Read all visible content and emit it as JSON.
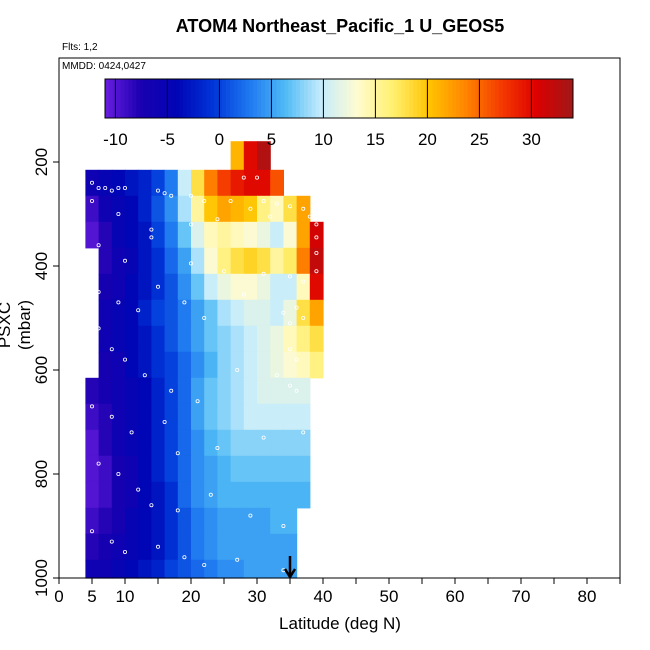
{
  "title": "ATOM4 Northeast_Pacific_1 U_GEOS5",
  "flights_label": "Flts: 1,2",
  "mmdd_label": "MMDD: 0424,0427",
  "chart_data": {
    "type": "heatmap",
    "xlabel": "Latitude (deg N)",
    "ylabel": "PSXC (mbar)",
    "xlim": [
      0,
      85
    ],
    "ylim": [
      1000,
      0
    ],
    "x_ticks": [
      0,
      5,
      10,
      20,
      30,
      40,
      50,
      60,
      70,
      80
    ],
    "y_ticks": [
      200,
      400,
      600,
      800,
      1000
    ],
    "colorbar": {
      "range": [
        -11,
        34
      ],
      "ticks": [
        -10,
        -5,
        0,
        5,
        10,
        15,
        20,
        25,
        30
      ],
      "colors": [
        "#6a1ee0",
        "#1a00b0",
        "#0005b5",
        "#0035d8",
        "#1e78f0",
        "#4fbaf5",
        "#c5ecfc",
        "#fffbd0",
        "#fff070",
        "#ffc400",
        "#ff8600",
        "#f53b00",
        "#dc0000",
        "#a01818"
      ]
    },
    "bins": {
      "lat_edges": [
        4,
        6,
        8,
        10,
        12,
        14,
        16,
        18,
        20,
        22,
        24,
        26,
        28,
        30,
        32,
        34,
        36,
        38,
        40
      ],
      "pressure_edges": [
        160,
        215,
        265,
        315,
        365,
        415,
        465,
        515,
        565,
        615,
        665,
        715,
        765,
        815,
        865,
        915,
        965,
        1000
      ],
      "u_wind": [
        [
          null,
          null,
          null,
          null,
          null,
          null,
          null,
          null,
          null,
          null,
          null,
          21,
          30,
          33,
          null,
          null,
          null,
          null
        ],
        [
          -6,
          -5,
          -4,
          -3,
          -2,
          0,
          3,
          10,
          18,
          24,
          27,
          29,
          30,
          30,
          26,
          null,
          null,
          null
        ],
        [
          -9,
          -6,
          -5,
          -4,
          -2,
          1,
          4,
          9,
          15,
          20,
          22,
          21,
          20,
          16,
          14,
          18,
          22,
          null
        ],
        [
          -10,
          -8,
          -5,
          -4,
          -3,
          0,
          3,
          7,
          11,
          14,
          15,
          14,
          13,
          12,
          10,
          13,
          22,
          31
        ],
        [
          null,
          -8,
          -6,
          -5,
          -3,
          -1,
          2,
          5,
          9,
          13,
          16,
          18,
          19,
          18,
          15,
          17,
          24,
          32
        ],
        [
          null,
          -7,
          -6,
          -4,
          -3,
          -1,
          1,
          4,
          7,
          10,
          12,
          13,
          13,
          12,
          10,
          10,
          14,
          30
        ],
        [
          null,
          -6,
          -5,
          -4,
          -2,
          0,
          1,
          3,
          5,
          7,
          9,
          10,
          11,
          11,
          10,
          12,
          18,
          22
        ],
        [
          null,
          -6,
          -5,
          -4,
          -3,
          -1,
          1,
          3,
          5,
          7,
          8,
          9,
          10,
          11,
          12,
          14,
          16,
          18
        ],
        [
          null,
          -7,
          -6,
          -4,
          -3,
          -1,
          0,
          2,
          4,
          6,
          8,
          9,
          10,
          11,
          12,
          13,
          14,
          16
        ],
        [
          -8,
          -7,
          -6,
          -5,
          -4,
          -2,
          0,
          2,
          5,
          7,
          8,
          9,
          10,
          11,
          11,
          11,
          11,
          null
        ],
        [
          -9,
          -8,
          -6,
          -5,
          -4,
          -2,
          0,
          2,
          5,
          7,
          8,
          9,
          10,
          10,
          10,
          10,
          10,
          null
        ],
        [
          -10,
          -8,
          -6,
          -5,
          -4,
          -2,
          0,
          2,
          4,
          6,
          7,
          8,
          8,
          8,
          8,
          8,
          8,
          null
        ],
        [
          -10,
          -9,
          -7,
          -6,
          -4,
          -2,
          0,
          2,
          4,
          5,
          6,
          7,
          7,
          7,
          7,
          7,
          7,
          null
        ],
        [
          -10,
          -9,
          -7,
          -6,
          -4,
          -3,
          -1,
          2,
          4,
          5,
          6,
          6,
          6,
          6,
          6,
          6,
          6,
          null
        ],
        [
          -9,
          -8,
          -7,
          -5,
          -4,
          -3,
          -1,
          1,
          3,
          4,
          5,
          5,
          5,
          5,
          6,
          6,
          null,
          null
        ],
        [
          -8,
          -7,
          -6,
          -5,
          -4,
          -3,
          -1,
          1,
          3,
          4,
          5,
          5,
          5,
          5,
          5,
          5,
          null,
          null
        ],
        [
          -6,
          -6,
          -5,
          -4,
          -3,
          -2,
          0,
          1,
          2,
          3,
          4,
          4,
          5,
          5,
          5,
          5,
          null,
          null
        ]
      ]
    },
    "sample_points": [
      [
        5,
        240
      ],
      [
        6,
        250
      ],
      [
        7,
        250
      ],
      [
        8,
        255
      ],
      [
        9,
        250
      ],
      [
        10,
        250
      ],
      [
        15,
        255
      ],
      [
        16,
        260
      ],
      [
        17,
        265
      ],
      [
        20,
        265
      ],
      [
        22,
        275
      ],
      [
        26,
        275
      ],
      [
        28,
        230
      ],
      [
        30,
        230
      ],
      [
        31,
        275
      ],
      [
        33,
        280
      ],
      [
        35,
        285
      ],
      [
        37,
        290
      ],
      [
        5,
        275
      ],
      [
        9,
        300
      ],
      [
        14,
        330
      ],
      [
        20,
        320
      ],
      [
        24,
        310
      ],
      [
        29,
        290
      ],
      [
        32,
        305
      ],
      [
        38,
        305
      ],
      [
        39,
        320
      ],
      [
        39,
        345
      ],
      [
        39,
        375
      ],
      [
        39,
        410
      ],
      [
        6,
        360
      ],
      [
        10,
        390
      ],
      [
        14,
        345
      ],
      [
        20,
        395
      ],
      [
        25,
        410
      ],
      [
        31,
        415
      ],
      [
        35,
        420
      ],
      [
        37,
        430
      ],
      [
        36,
        480
      ],
      [
        37,
        500
      ],
      [
        35,
        510
      ],
      [
        6,
        450
      ],
      [
        9,
        470
      ],
      [
        12,
        485
      ],
      [
        15,
        440
      ],
      [
        19,
        470
      ],
      [
        22,
        500
      ],
      [
        28,
        455
      ],
      [
        34,
        490
      ],
      [
        35,
        560
      ],
      [
        36,
        580
      ],
      [
        35,
        630
      ],
      [
        6,
        520
      ],
      [
        8,
        560
      ],
      [
        10,
        580
      ],
      [
        13,
        610
      ],
      [
        17,
        640
      ],
      [
        21,
        660
      ],
      [
        27,
        600
      ],
      [
        33,
        610
      ],
      [
        36,
        640
      ],
      [
        5,
        670
      ],
      [
        8,
        690
      ],
      [
        11,
        720
      ],
      [
        16,
        700
      ],
      [
        18,
        760
      ],
      [
        24,
        750
      ],
      [
        31,
        730
      ],
      [
        37,
        720
      ],
      [
        6,
        780
      ],
      [
        9,
        800
      ],
      [
        12,
        830
      ],
      [
        14,
        860
      ],
      [
        18,
        870
      ],
      [
        23,
        840
      ],
      [
        29,
        880
      ],
      [
        34,
        900
      ],
      [
        5,
        910
      ],
      [
        8,
        930
      ],
      [
        10,
        950
      ],
      [
        15,
        940
      ],
      [
        19,
        960
      ],
      [
        22,
        975
      ],
      [
        27,
        965
      ],
      [
        34,
        985
      ],
      [
        37,
        960
      ]
    ],
    "annotations": [
      {
        "type": "arrow",
        "x": 35,
        "direction": "down"
      }
    ]
  }
}
